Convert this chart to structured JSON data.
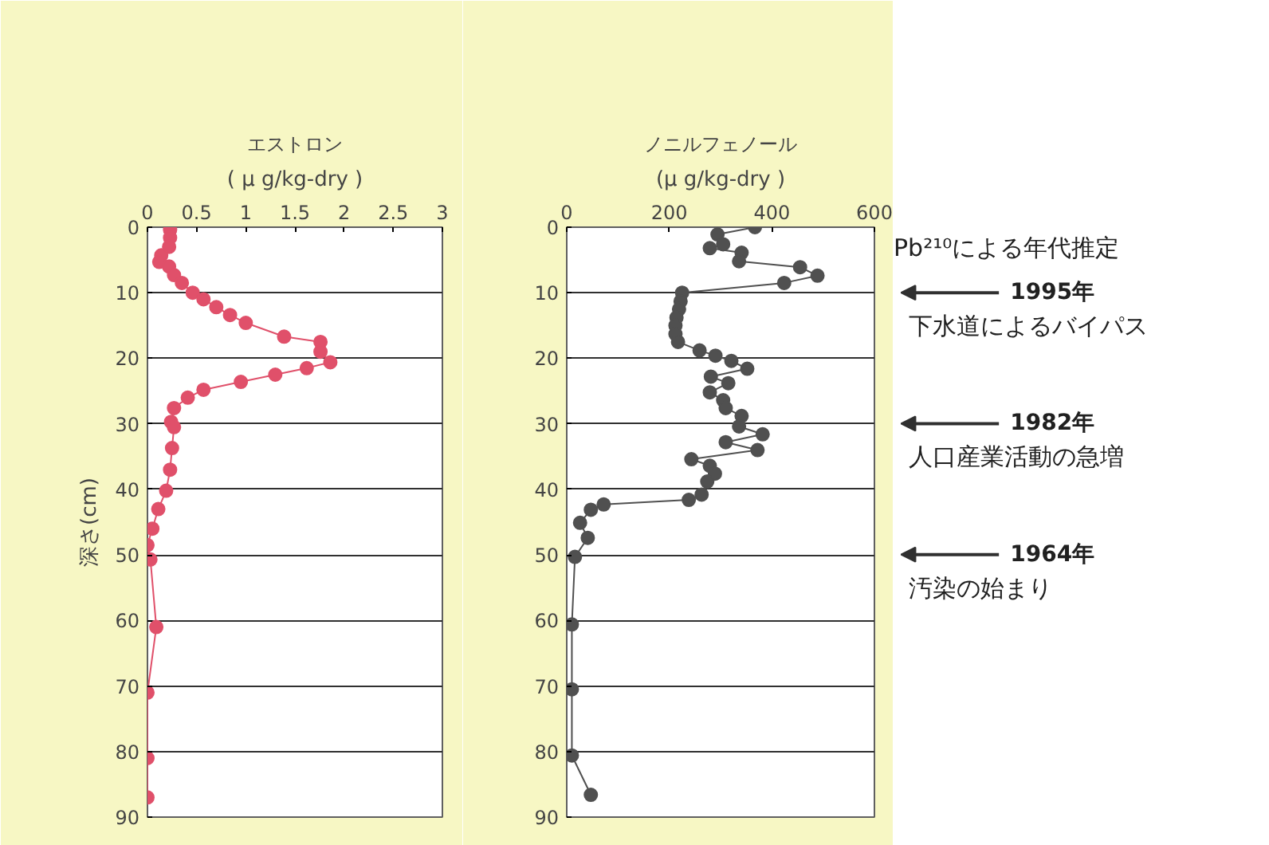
{
  "chart_data": [
    {
      "type": "line",
      "title": "エストロン",
      "xlabel": "( μ g/kg-dry )",
      "ylabel": "深さ(cm)",
      "xlim": [
        0,
        3
      ],
      "xticks": [
        0,
        0.5,
        1,
        1.5,
        2,
        2.5,
        3
      ],
      "ylim": [
        90,
        0
      ],
      "yticks": [
        0,
        10,
        20,
        30,
        40,
        50,
        60,
        70,
        80,
        90
      ],
      "grid": "y",
      "marker": "circle",
      "series": [
        {
          "color": "#e0506a",
          "x": [
            0.23,
            0.23,
            0.22,
            0.14,
            0.12,
            0.22,
            0.27,
            0.35,
            0.46,
            0.57,
            0.7,
            0.84,
            1.0,
            1.39,
            1.76,
            1.76,
            1.86,
            1.62,
            1.3,
            0.95,
            0.57,
            0.41,
            0.27,
            0.24,
            0.27,
            0.25,
            0.23,
            0.19,
            0.11,
            0.05,
            0,
            0.03,
            0.09,
            0,
            0,
            0
          ],
          "values": [
            0.4,
            1.6,
            3,
            4.3,
            5.3,
            6,
            7.3,
            8.5,
            10,
            11,
            12.2,
            13.4,
            14.6,
            16.7,
            17.5,
            19,
            20.6,
            21.5,
            22.5,
            23.6,
            24.8,
            26,
            27.6,
            29.7,
            30.5,
            33.7,
            37,
            40.2,
            43,
            46,
            48.5,
            50.7,
            61,
            71,
            81,
            87
          ]
        }
      ]
    },
    {
      "type": "line",
      "title": "ノニルフェノール",
      "xlabel": "(μ g/kg-dry )",
      "xlim": [
        0,
        600
      ],
      "xticks": [
        0,
        200,
        400,
        600
      ],
      "ylim": [
        90,
        0
      ],
      "yticks": [
        0,
        10,
        20,
        30,
        40,
        50,
        60,
        70,
        80,
        90
      ],
      "grid": "y",
      "marker": "circle",
      "series": [
        {
          "color": "#505050",
          "x": [
            367,
            294,
            305,
            279,
            341,
            336,
            455,
            489,
            424,
            225,
            222,
            219,
            214,
            212,
            212,
            217,
            259,
            290,
            321,
            352,
            281,
            315,
            279,
            305,
            310,
            341,
            336,
            382,
            310,
            372,
            243,
            279,
            289,
            274,
            263,
            238,
            72,
            47,
            26,
            41,
            16,
            10,
            10,
            10,
            47
          ],
          "values": [
            0,
            1.1,
            2.6,
            3.2,
            3.9,
            5.2,
            6.1,
            7.4,
            8.5,
            10,
            11.3,
            12.5,
            13.8,
            15,
            16.3,
            17.5,
            18.8,
            19.6,
            20.4,
            21.6,
            22.8,
            23.8,
            25.2,
            26.4,
            27.6,
            28.8,
            30.4,
            31.6,
            32.8,
            34,
            35.4,
            36.4,
            37.6,
            38.8,
            40.8,
            41.6,
            42.3,
            43.1,
            45.1,
            47.4,
            50.3,
            60.6,
            70.5,
            80.6,
            86.6
          ]
        }
      ],
      "annotations": [
        "Pb²¹⁰による年代推定",
        "1995年",
        "下水道によるバイパス",
        "1982年",
        "人口産業活動の急増",
        "1964年",
        "汚染の始まり"
      ]
    }
  ]
}
